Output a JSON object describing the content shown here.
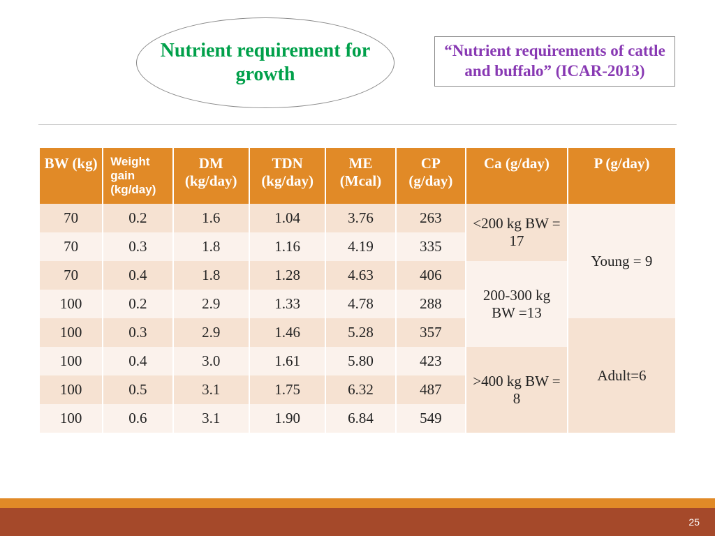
{
  "header": {
    "ellipse_title": "Nutrient requirement for growth",
    "reference": "“Nutrient requirements of cattle and buffalo” (ICAR-2013)"
  },
  "table": {
    "columns": [
      {
        "label": "BW (kg)",
        "width": "10%"
      },
      {
        "label": "Weight gain (kg/day)",
        "width": "11%",
        "alt_font": true
      },
      {
        "label": "DM (kg/day)",
        "width": "12%"
      },
      {
        "label": "TDN (kg/day)",
        "width": "12%"
      },
      {
        "label": "ME (Mcal)",
        "width": "11%"
      },
      {
        "label": "CP (g/day)",
        "width": "11%"
      },
      {
        "label": "Ca (g/day)",
        "width": "16%"
      },
      {
        "label": "P (g/day)",
        "width": "17%"
      }
    ],
    "rows": [
      {
        "bw": "70",
        "wg": "0.2",
        "dm": "1.6",
        "tdn": "1.04",
        "me": "3.76",
        "cp": "263"
      },
      {
        "bw": "70",
        "wg": "0.3",
        "dm": "1.8",
        "tdn": "1.16",
        "me": "4.19",
        "cp": "335"
      },
      {
        "bw": "70",
        "wg": "0.4",
        "dm": "1.8",
        "tdn": "1.28",
        "me": "4.63",
        "cp": "406"
      },
      {
        "bw": "100",
        "wg": "0.2",
        "dm": "2.9",
        "tdn": "1.33",
        "me": "4.78",
        "cp": "288"
      },
      {
        "bw": "100",
        "wg": "0.3",
        "dm": "2.9",
        "tdn": "1.46",
        "me": "5.28",
        "cp": "357"
      },
      {
        "bw": "100",
        "wg": "0.4",
        "dm": "3.0",
        "tdn": "1.61",
        "me": "5.80",
        "cp": "423"
      },
      {
        "bw": "100",
        "wg": "0.5",
        "dm": "3.1",
        "tdn": "1.75",
        "me": "6.32",
        "cp": "487"
      },
      {
        "bw": "100",
        "wg": "0.6",
        "dm": "3.1",
        "tdn": "1.90",
        "me": "6.84",
        "cp": "549"
      }
    ],
    "ca_merges": [
      {
        "text": "<200 kg BW = 17",
        "rowspan": 2,
        "shade": "a"
      },
      {
        "text": "200-300 kg BW =13",
        "rowspan": 3,
        "shade": "b"
      },
      {
        "text": ">400 kg BW = 8",
        "rowspan": 3,
        "shade": "a"
      }
    ],
    "p_merges": [
      {
        "text": "Young = 9",
        "rowspan": 4,
        "shade": "b"
      },
      {
        "text": "Adult=6",
        "rowspan": 4,
        "shade": "a"
      }
    ]
  },
  "colors": {
    "header_bg": "#e18a27",
    "row_odd": "#f6e2d2",
    "row_even": "#fbf2ec",
    "ellipse_text": "#00a04a",
    "ref_text": "#8839b3",
    "footer_bar": "#e18a27",
    "footer_band": "#a5492a"
  },
  "page_number": "25"
}
